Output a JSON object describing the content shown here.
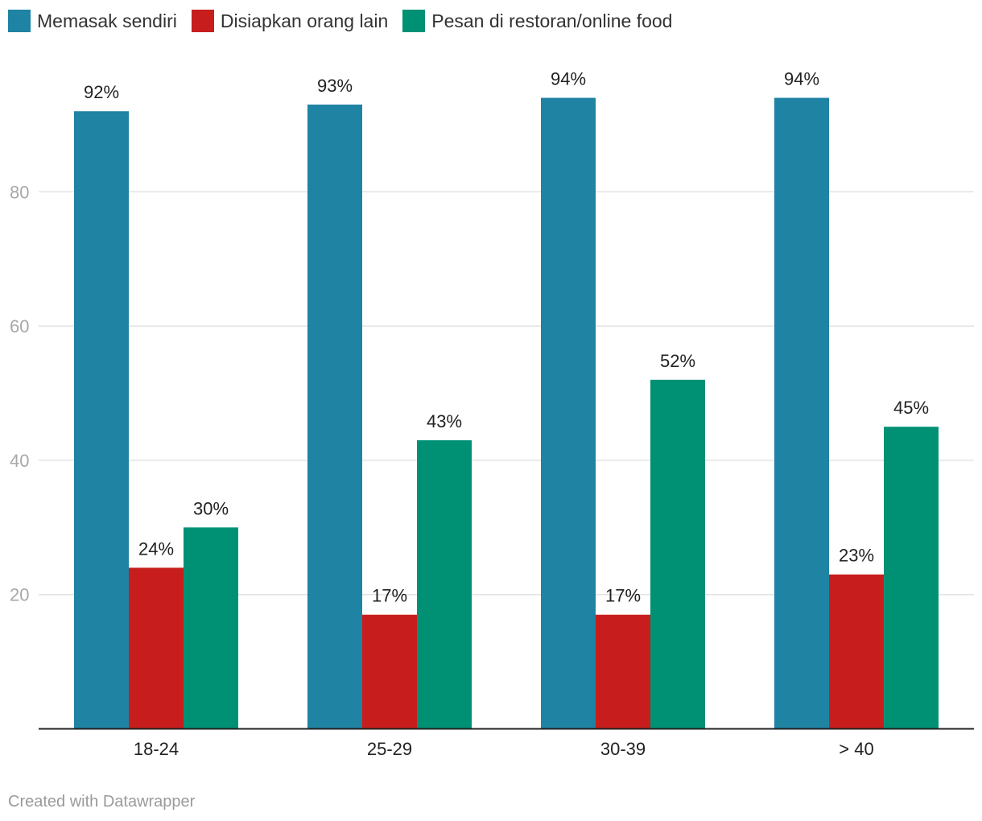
{
  "legend": {
    "items": [
      {
        "label": "Memasak sendiri",
        "color": "#1f83a3"
      },
      {
        "label": "Disiapkan orang lain",
        "color": "#c71e1d"
      },
      {
        "label": "Pesan di restoran/online food",
        "color": "#009174"
      }
    ]
  },
  "chart_data": {
    "type": "bar",
    "categories": [
      "18-24",
      "25-29",
      "30-39",
      "> 40"
    ],
    "series": [
      {
        "name": "Memasak sendiri",
        "values": [
          92,
          93,
          94,
          94
        ],
        "color": "#1f83a3"
      },
      {
        "name": "Disiapkan orang lain",
        "values": [
          24,
          17,
          17,
          23
        ],
        "color": "#c71e1d"
      },
      {
        "name": "Pesan di restoran/online food",
        "values": [
          30,
          43,
          52,
          45
        ],
        "color": "#009174"
      }
    ],
    "value_suffix": "%",
    "yticks": [
      20,
      40,
      60,
      80
    ],
    "ylim": [
      0,
      100
    ],
    "grid": true,
    "legend_position": "top-left"
  },
  "footer": {
    "credit": "Created with Datawrapper"
  }
}
